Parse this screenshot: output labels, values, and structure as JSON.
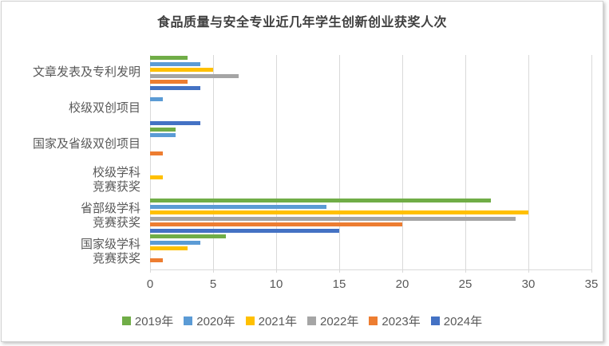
{
  "chart_data": {
    "type": "bar",
    "orientation": "horizontal",
    "title": "食品质量与安全专业近几年学生创新创业获奖人次",
    "categories": [
      "文章发表及专利发明",
      "校级双创项目",
      "国家及省级双创项目",
      "校级学科竞赛获奖",
      "省部级学科竞赛获奖",
      "国家级学科竞赛获奖"
    ],
    "categories_display": [
      [
        "文章发表及专利发明"
      ],
      [
        "校级双创项目"
      ],
      [
        "国家及省级双创项目"
      ],
      [
        "校级学科",
        "竞赛获奖"
      ],
      [
        "省部级学科",
        "竞赛获奖"
      ],
      [
        "国家级学科",
        "竞赛获奖"
      ]
    ],
    "series": [
      {
        "name": "2019年",
        "color": "#70AD47",
        "values": [
          3,
          0,
          2,
          0,
          27,
          6
        ]
      },
      {
        "name": "2020年",
        "color": "#5B9BD5",
        "values": [
          4,
          1,
          2,
          0,
          14,
          4
        ]
      },
      {
        "name": "2021年",
        "color": "#FFC000",
        "values": [
          5,
          0,
          0,
          1,
          30,
          3
        ]
      },
      {
        "name": "2022年",
        "color": "#A5A5A5",
        "values": [
          7,
          0,
          0,
          0,
          29,
          0
        ]
      },
      {
        "name": "2023年",
        "color": "#ED7D31",
        "values": [
          3,
          0,
          1,
          0,
          20,
          1
        ]
      },
      {
        "name": "2024年",
        "color": "#4472C4",
        "values": [
          4,
          4,
          0,
          0,
          15,
          0
        ]
      }
    ],
    "x_axis": {
      "min": 0,
      "max": 35,
      "step": 5,
      "tick_labels": [
        "0",
        "5",
        "10",
        "15",
        "20",
        "25",
        "30",
        "35"
      ]
    },
    "legend_position": "bottom",
    "grid": true,
    "colors": {
      "grid": "#d9d9d9",
      "axis_text": "#595959",
      "title_text": "#404040",
      "frame_border": "#d2d2d2"
    }
  }
}
